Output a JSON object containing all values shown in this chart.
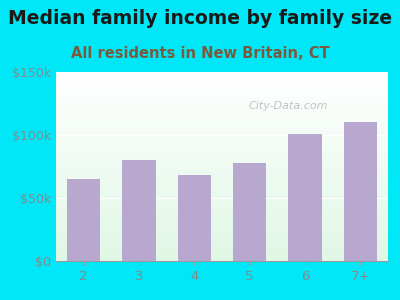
{
  "title": "Median family income by family size",
  "subtitle": "All residents in New Britain, CT",
  "categories": [
    "2",
    "3",
    "4",
    "5",
    "6",
    "7+"
  ],
  "values": [
    65000,
    80000,
    68000,
    78000,
    101000,
    110000
  ],
  "bar_color": "#b8a8d0",
  "title_color": "#1a1a1a",
  "subtitle_color": "#7a5a3a",
  "background_outer": "#00e8f8",
  "ylim": [
    0,
    150000
  ],
  "yticks": [
    0,
    50000,
    100000,
    150000
  ],
  "ytick_labels": [
    "$0",
    "$50k",
    "$100k",
    "$150k"
  ],
  "title_fontsize": 13.5,
  "subtitle_fontsize": 10.5,
  "watermark": "City-Data.com",
  "tick_color": "#888888"
}
